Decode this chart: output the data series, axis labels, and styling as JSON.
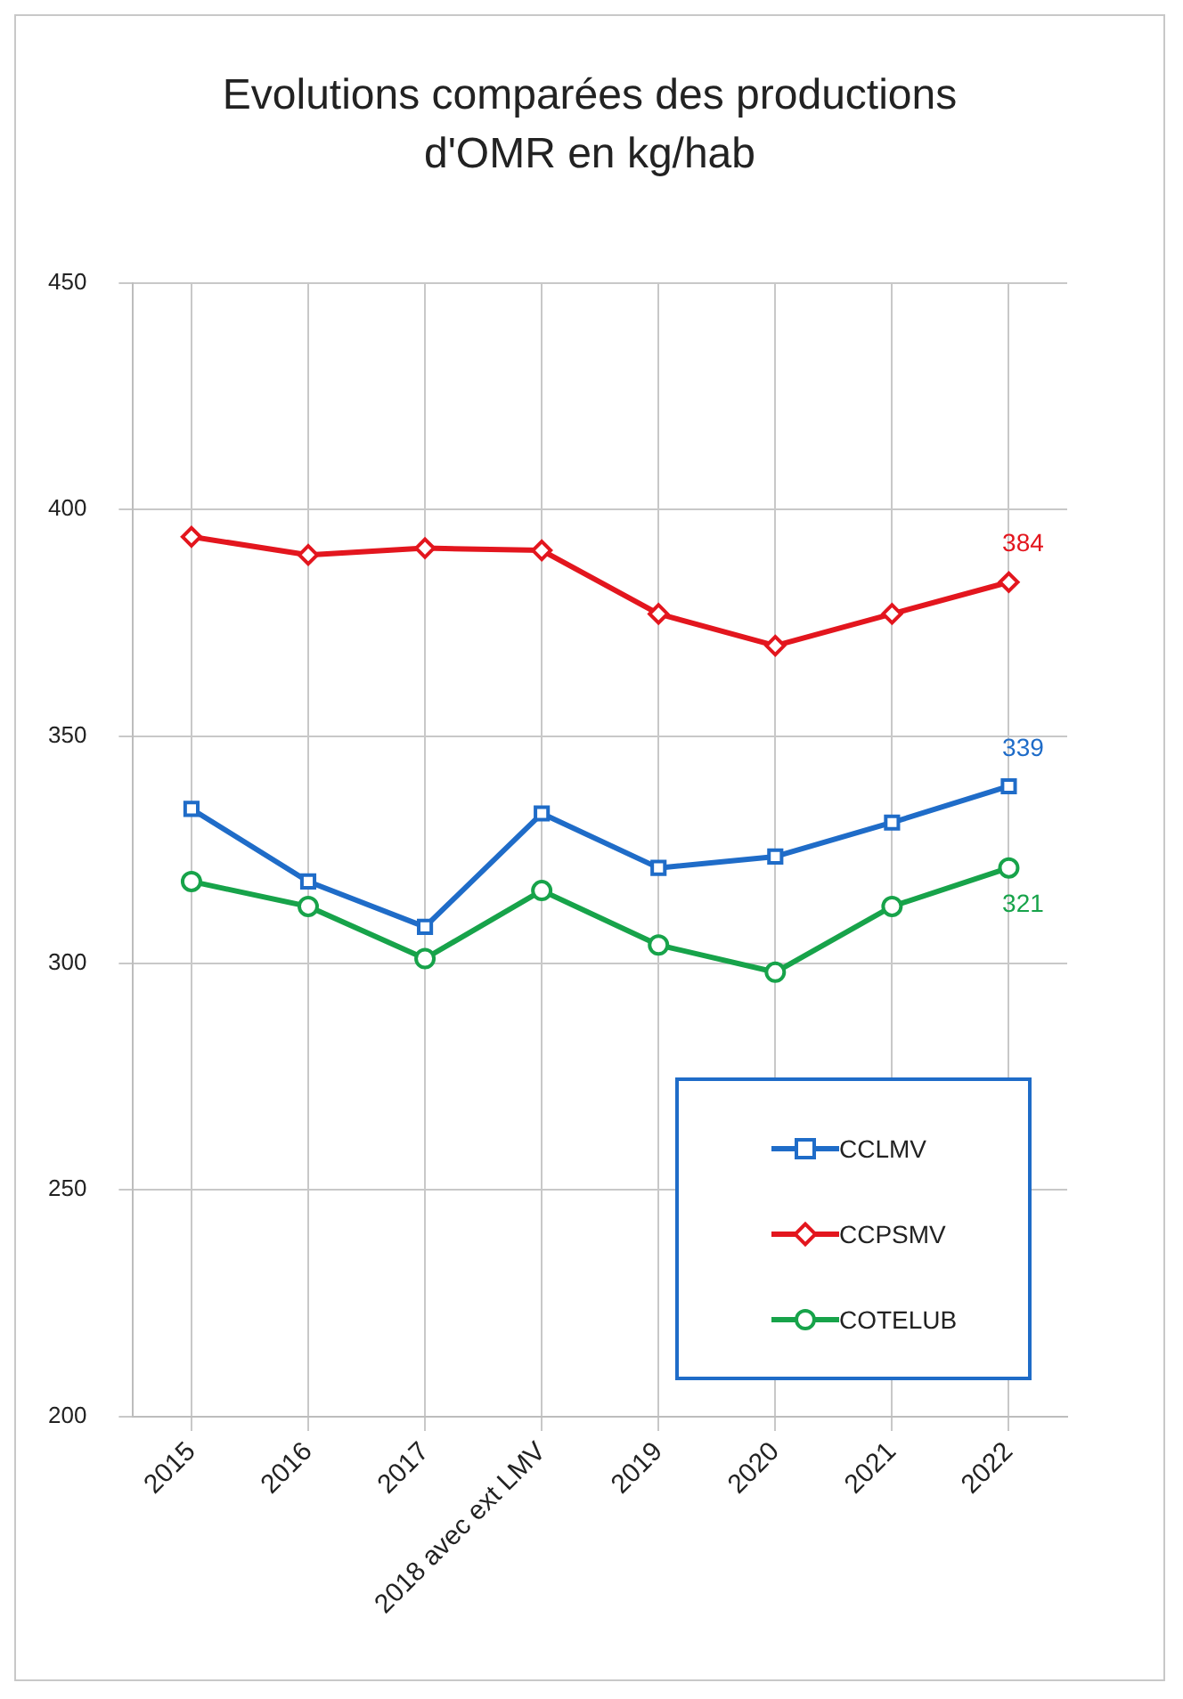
{
  "chart_data": {
    "type": "line",
    "title": "Evolutions comparées des productions d'OMR en kg/hab",
    "categories": [
      "2015",
      "2016",
      "2017",
      "2018 avec ext LMV",
      "2019",
      "2020",
      "2021",
      "2022"
    ],
    "series": [
      {
        "name": "CCLMV",
        "color": "#1f6cc8",
        "marker": "square",
        "values": [
          334,
          318,
          308,
          333,
          321,
          323.5,
          331,
          339
        ],
        "value_labels": [
          null,
          null,
          null,
          null,
          null,
          null,
          null,
          "339"
        ]
      },
      {
        "name": "CCPSMV",
        "color": "#e3161e",
        "marker": "diamond",
        "values": [
          394,
          390,
          391.5,
          391,
          377,
          370,
          377,
          384
        ],
        "value_labels": [
          null,
          null,
          null,
          null,
          null,
          null,
          null,
          "384"
        ]
      },
      {
        "name": "COTELUB",
        "color": "#17a34a",
        "marker": "circle",
        "values": [
          318,
          312.5,
          301,
          316,
          304,
          298,
          312.5,
          321
        ],
        "value_labels": [
          null,
          null,
          null,
          null,
          null,
          null,
          null,
          "321"
        ]
      }
    ],
    "ylim": [
      200,
      450
    ],
    "yticks": [
      200,
      250,
      300,
      350,
      400,
      450
    ],
    "grid": true,
    "legend": "bottom right",
    "line_style": "solid"
  }
}
